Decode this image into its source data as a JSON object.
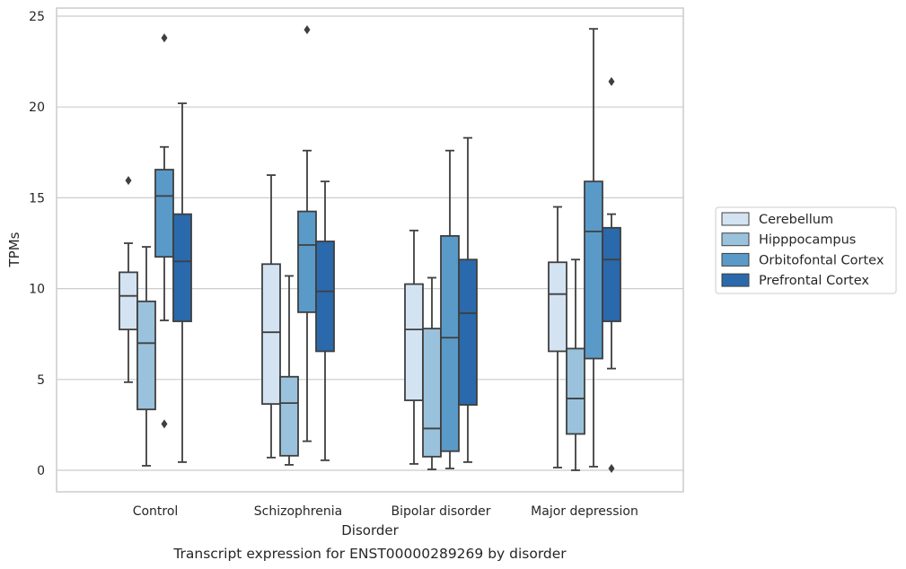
{
  "chart_data": {
    "type": "box",
    "caption": "Transcript expression for ENST00000289269 by disorder",
    "xlabel": "Disorder",
    "ylabel": "TPMs",
    "ylim": [
      -1.2,
      25.6
    ],
    "yticks": [
      0,
      5,
      10,
      15,
      20,
      25
    ],
    "ytick_labels": [
      "0",
      "5",
      "10",
      "15",
      "20",
      "25"
    ],
    "grid": "horizontal",
    "legend_position": "right",
    "categories": [
      "Control",
      "Schizophrenia",
      "Bipolar disorder",
      "Major depression"
    ],
    "series": [
      {
        "name": "Cerebellum",
        "color": "#d3e3f2",
        "boxes": [
          {
            "whisker_low": 4.85,
            "q1": 7.75,
            "median": 9.6,
            "q3": 10.9,
            "whisker_high": 12.5,
            "outliers": [
              15.95
            ]
          },
          {
            "whisker_low": 0.7,
            "q1": 3.65,
            "median": 7.6,
            "q3": 11.35,
            "whisker_high": 16.25,
            "outliers": []
          },
          {
            "whisker_low": 0.35,
            "q1": 3.85,
            "median": 7.75,
            "q3": 10.25,
            "whisker_high": 13.2,
            "outliers": []
          },
          {
            "whisker_low": 0.15,
            "q1": 6.55,
            "median": 9.7,
            "q3": 11.45,
            "whisker_high": 14.5,
            "outliers": []
          }
        ]
      },
      {
        "name": "Hipppocampus",
        "color": "#9ac2dc",
        "boxes": [
          {
            "whisker_low": 0.25,
            "q1": 3.35,
            "median": 7.0,
            "q3": 9.3,
            "whisker_high": 12.3,
            "outliers": []
          },
          {
            "whisker_low": 0.3,
            "q1": 0.8,
            "median": 3.7,
            "q3": 5.15,
            "whisker_high": 10.7,
            "outliers": []
          },
          {
            "whisker_low": 0.05,
            "q1": 0.75,
            "median": 2.3,
            "q3": 7.8,
            "whisker_high": 10.6,
            "outliers": []
          },
          {
            "whisker_low": 0.0,
            "q1": 2.0,
            "median": 3.95,
            "q3": 6.7,
            "whisker_high": 11.6,
            "outliers": []
          }
        ]
      },
      {
        "name": "Orbitofontal Cortex",
        "color": "#5a9ac8",
        "boxes": [
          {
            "whisker_low": 8.25,
            "q1": 11.75,
            "median": 15.1,
            "q3": 16.55,
            "whisker_high": 17.8,
            "outliers": [
              2.55,
              23.8
            ]
          },
          {
            "whisker_low": 1.6,
            "q1": 8.7,
            "median": 12.4,
            "q3": 14.25,
            "whisker_high": 17.6,
            "outliers": [
              24.25
            ]
          },
          {
            "whisker_low": 0.1,
            "q1": 1.05,
            "median": 7.3,
            "q3": 12.9,
            "whisker_high": 17.6,
            "outliers": []
          },
          {
            "whisker_low": 0.2,
            "q1": 6.15,
            "median": 13.15,
            "q3": 15.9,
            "whisker_high": 24.3,
            "outliers": []
          }
        ]
      },
      {
        "name": "Prefrontal Cortex",
        "color": "#2a69ab",
        "boxes": [
          {
            "whisker_low": 0.45,
            "q1": 8.2,
            "median": 11.5,
            "q3": 14.1,
            "whisker_high": 20.2,
            "outliers": []
          },
          {
            "whisker_low": 0.55,
            "q1": 6.55,
            "median": 9.85,
            "q3": 12.6,
            "whisker_high": 15.9,
            "outliers": []
          },
          {
            "whisker_low": 0.45,
            "q1": 3.6,
            "median": 8.65,
            "q3": 11.6,
            "whisker_high": 18.3,
            "outliers": []
          },
          {
            "whisker_low": 5.6,
            "q1": 8.2,
            "median": 11.6,
            "q3": 13.35,
            "whisker_high": 14.1,
            "outliers": [
              0.1,
              21.4
            ]
          }
        ]
      }
    ]
  }
}
